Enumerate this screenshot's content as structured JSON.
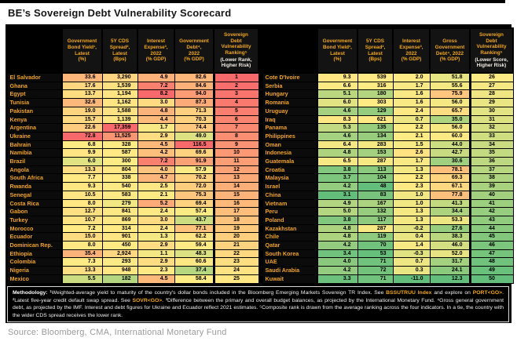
{
  "title": "BE’s Sovereign Debt Vulnerability Scorecard",
  "source": "Source: Bloomberg, CMA, International Monetary Fund",
  "colors": {
    "accent_orange": "#F2A71C",
    "panel_bg": "#000000",
    "header_note_white": "#F2EDE4",
    "scale_green": "#63BE7B",
    "scale_yellow": "#FFEB84",
    "scale_red": "#F8696B",
    "methodology_text": "#EFEFEF",
    "source_gray": "#9B9B9B"
  },
  "chart_data": {
    "type": "table",
    "subtype": "heatmap",
    "color_scale_note": "Each indicator column shaded green (low risk) through yellow (median) to red (high risk) using min/median/max across all 50 countries; ranking column shades red at rank 1 to green at rank 50.",
    "tables": [
      {
        "id": "ranks-1-25",
        "corner_label": "",
        "headers": [
          "Government\nBond Yield¹,\nLatest\n(%)",
          "5Y CDS\nSpread²,\nLatest\n(Bps)",
          "Interest\nExpense³,\n2022\n(% GDP)",
          "Government\nDebt⁴,\n2022\n(% GDP)"
        ],
        "rank_header": "Sovereign\nDebt\nVulnerability\nRanking⁵",
        "rank_note": "(Lower Rank,\nHigher Risk)",
        "rows": [
          [
            "El Salvador",
            "33.6",
            "3,290",
            "4.9",
            "82.6",
            1
          ],
          [
            "Ghana",
            "17.6",
            "1,539",
            "7.2",
            "84.6",
            2
          ],
          [
            "Egypt",
            "13.7",
            "1,194",
            "8.2",
            "94.0",
            3
          ],
          [
            "Tunisia",
            "32.6",
            "1,162",
            "3.0",
            "87.3",
            4
          ],
          [
            "Pakistan",
            "19.0",
            "1,588",
            "4.8",
            "71.3",
            5
          ],
          [
            "Kenya",
            "15.7",
            "1,139",
            "4.4",
            "70.3",
            6
          ],
          [
            "Argentina",
            "22.6",
            "17,359",
            "1.7",
            "74.4",
            7
          ],
          [
            "Ukraine",
            "72.8",
            "11,525",
            "2.9",
            "49.0",
            8
          ],
          [
            "Bahrain",
            "6.8",
            "328",
            "4.5",
            "116.5",
            9
          ],
          [
            "Namibia",
            "9.9",
            "587",
            "4.2",
            "69.6",
            10
          ],
          [
            "Brazil",
            "6.0",
            "300",
            "7.2",
            "91.9",
            11
          ],
          [
            "Angola",
            "13.3",
            "804",
            "4.0",
            "57.9",
            12
          ],
          [
            "South Africa",
            "7.7",
            "338",
            "4.7",
            "70.2",
            13
          ],
          [
            "Rwanda",
            "9.3",
            "540",
            "2.5",
            "72.0",
            14
          ],
          [
            "Senegal",
            "10.5",
            "583",
            "2.1",
            "75.3",
            15
          ],
          [
            "Costa Rica",
            "8.0",
            "279",
            "5.2",
            "69.4",
            16
          ],
          [
            "Gabon",
            "12.7",
            "841",
            "2.4",
            "57.4",
            17
          ],
          [
            "Turkey",
            "10.7",
            "869",
            "3.0",
            "43.7",
            18
          ],
          [
            "Morocco",
            "7.2",
            "314",
            "2.4",
            "77.1",
            19
          ],
          [
            "Ecuador",
            "15.0",
            "901",
            "1.3",
            "62.2",
            20
          ],
          [
            "Dominican Rep.",
            "8.0",
            "450",
            "2.9",
            "59.4",
            21
          ],
          [
            "Ethiopia",
            "35.4",
            "2,924",
            "1.1",
            "48.3",
            22
          ],
          [
            "Colombia",
            "7.3",
            "293",
            "2.9",
            "60.6",
            23
          ],
          [
            "Nigeria",
            "13.3",
            "948",
            "2.3",
            "37.4",
            24
          ],
          [
            "Mexico",
            "5.5",
            "182",
            "4.5",
            "58.4",
            25
          ]
        ]
      },
      {
        "id": "ranks-26-50",
        "corner_label": "",
        "headers": [
          "Government\nBond Yield¹,\nLatest\n(%)",
          "5Y CDS\nSpread²,\nLatest\n(Bps)",
          "Interest\nExpense³,\n2022\n(% GDP)",
          "Gross\nGovernment\nDebt⁴, 2022\n(% GDP)"
        ],
        "rank_header": "Sovereign\nDebt\nVulnerability\nRanking⁵",
        "rank_note": "(Lower Score,\nHigher Risk)",
        "rows": [
          [
            "Cote D'Ivoire",
            "9.3",
            "539",
            "2.0",
            "51.8",
            26
          ],
          [
            "Serbia",
            "6.6",
            "316",
            "1.7",
            "55.6",
            27
          ],
          [
            "Hungary",
            "5.1",
            "180",
            "1.6",
            "75.9",
            28
          ],
          [
            "Romania",
            "6.0",
            "303",
            "1.6",
            "56.0",
            29
          ],
          [
            "Uruguay",
            "4.6",
            "129",
            "2.4",
            "65.7",
            30
          ],
          [
            "Iraq",
            "8.3",
            "621",
            "0.7",
            "35.0",
            31
          ],
          [
            "Panama",
            "5.3",
            "135",
            "2.2",
            "56.0",
            32
          ],
          [
            "Philippines",
            "4.6",
            "134",
            "2.1",
            "60.0",
            33
          ],
          [
            "Oman",
            "6.4",
            "283",
            "1.5",
            "44.0",
            34
          ],
          [
            "Indonesia",
            "4.8",
            "153",
            "2.6",
            "42.7",
            35
          ],
          [
            "Guatemala",
            "6.5",
            "287",
            "1.7",
            "30.6",
            36
          ],
          [
            "Croatia",
            "3.8",
            "113",
            "1.3",
            "78.1",
            37
          ],
          [
            "Malaysia",
            "3.7",
            "104",
            "2.2",
            "69.3",
            38
          ],
          [
            "Israel",
            "4.2",
            "48",
            "2.3",
            "67.1",
            39
          ],
          [
            "China",
            "3.1",
            "83",
            "1.0",
            "77.8",
            40
          ],
          [
            "Vietnam",
            "4.9",
            "167",
            "1.0",
            "41.3",
            41
          ],
          [
            "Peru",
            "5.0",
            "132",
            "1.3",
            "34.4",
            42
          ],
          [
            "Poland",
            "3.8",
            "117",
            "1.3",
            "53.3",
            43
          ],
          [
            "Kazakhstan",
            "4.8",
            "287",
            "-0.2",
            "27.6",
            44
          ],
          [
            "Chile",
            "4.8",
            "119",
            "0.4",
            "38.3",
            45
          ],
          [
            "Qatar",
            "4.2",
            "70",
            "1.4",
            "46.0",
            46
          ],
          [
            "South Korea",
            "3.4",
            "53",
            "-0.3",
            "52.0",
            47
          ],
          [
            "UAE",
            "4.0",
            "71",
            "0.7",
            "31.7",
            48
          ],
          [
            "Saudi Arabia",
            "4.2",
            "72",
            "0.3",
            "24.1",
            49
          ],
          [
            "Kuwait",
            "3.3",
            "71",
            "-11.0",
            "12.3",
            50
          ]
        ]
      }
    ]
  },
  "methodology": {
    "segments": [
      {
        "text": "Methodology: ",
        "style": "bold"
      },
      {
        "text": "¹Weighted-average yield to maturity of the country's dollar bonds included in the Bloomberg Emerging Markets Sovereign TR Index. See ",
        "style": "normal"
      },
      {
        "text": "BSSUTRUU Index",
        "style": "ticker"
      },
      {
        "text": " and explore on ",
        "style": "normal"
      },
      {
        "text": "PORT<GO>",
        "style": "ticker"
      },
      {
        "text": ". ²Latest five-year credit default swap spread. See ",
        "style": "normal"
      },
      {
        "text": "SOVR<GO>",
        "style": "ticker"
      },
      {
        "text": ". ³Difference between the primary and overall budget balances, as projected by the International Monetary Fund. ⁴Gross general government debt, as projected by the IMF. Interest and debt figures for Ukraine and Ecuador reflect 2021 estimates. ⁵Composite rank is drawn from the average ranking across the four indicators. In a tie, the country with the wider CDS spread receives the lower rank.",
        "style": "normal"
      }
    ]
  }
}
